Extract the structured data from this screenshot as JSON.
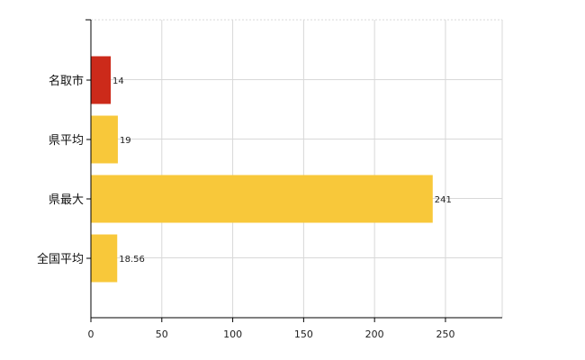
{
  "chart_data": {
    "type": "bar",
    "orientation": "horizontal",
    "categories": [
      "名取市",
      "県平均",
      "県最大",
      "全国平均"
    ],
    "values": [
      14,
      19,
      241,
      18.56
    ],
    "value_labels": [
      "14",
      "19",
      "241",
      "18.56"
    ],
    "bar_colors": [
      "#cc2a1a",
      "#f8c83a",
      "#f8c83a",
      "#f8c83a"
    ],
    "xlim": [
      0,
      290
    ],
    "xticks": [
      0,
      50,
      100,
      150,
      200,
      250
    ],
    "grid": true,
    "legend": "none"
  }
}
